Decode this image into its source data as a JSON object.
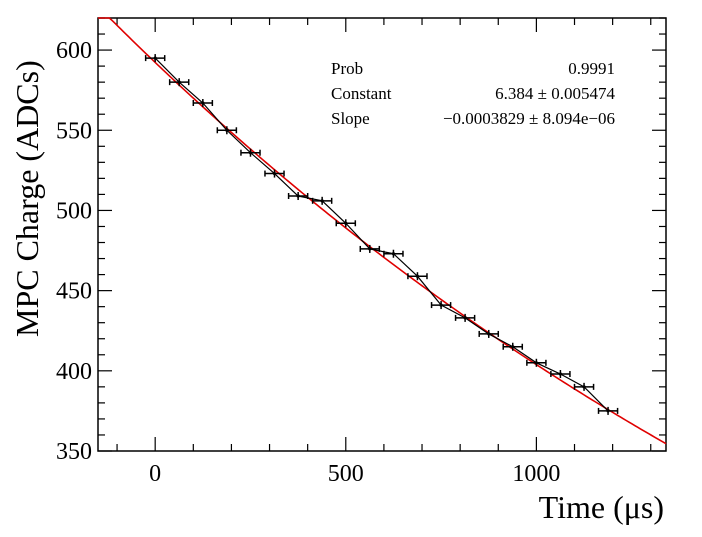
{
  "chart_data": {
    "type": "scatter",
    "xlabel": "Time (μs)",
    "ylabel": "MPC Charge (ADCs)",
    "xlim": [
      -150,
      1340
    ],
    "ylim": [
      350,
      620
    ],
    "x_ticks": [
      0,
      500,
      1000
    ],
    "y_ticks": [
      350,
      400,
      450,
      500,
      550,
      600
    ],
    "grid": false,
    "legend": "none",
    "marker_color": "#000000",
    "fit_color": "#e00000",
    "series": [
      {
        "x": [
          0,
          63,
          125,
          188,
          250,
          313,
          375,
          438,
          500,
          563,
          625,
          688,
          750,
          813,
          875,
          938,
          1000,
          1063,
          1125,
          1188
        ],
        "y": [
          595,
          580,
          567,
          550,
          536,
          523,
          509,
          506,
          492,
          476,
          473,
          459,
          441,
          433,
          423,
          415,
          405,
          398,
          390,
          375
        ],
        "x_err": [
          25,
          25,
          25,
          25,
          25,
          25,
          25,
          25,
          25,
          25,
          25,
          25,
          25,
          25,
          25,
          25,
          25,
          25,
          25,
          25
        ],
        "y_err": [
          2.5,
          2.5,
          2.5,
          2.5,
          2.5,
          2.5,
          2.5,
          2.5,
          2.5,
          2.5,
          2.5,
          2.5,
          2.5,
          2.5,
          2.5,
          2.5,
          2.5,
          2.5,
          2.5,
          2.5
        ]
      }
    ],
    "fit": {
      "function": "exp(Constant + Slope*x)",
      "constant": 6.384,
      "slope": -0.0003829
    },
    "stats": [
      {
        "name": "Prob",
        "value": "0.9991"
      },
      {
        "name": "Constant",
        "value": "6.384 ± 0.005474"
      },
      {
        "name": "Slope",
        "value": "−0.0003829 ± 8.094e−06"
      }
    ]
  }
}
